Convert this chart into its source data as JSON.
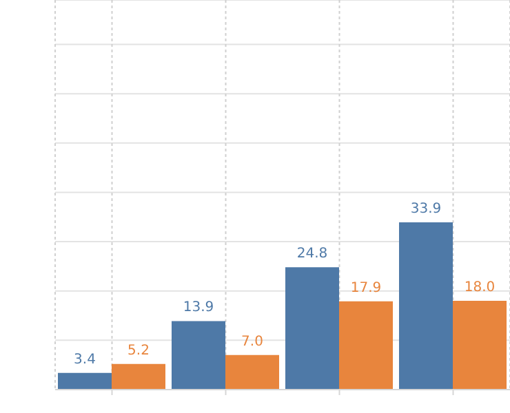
{
  "chart_data": {
    "type": "bar",
    "categories": [
      null,
      null,
      null,
      null
    ],
    "series": [
      {
        "color": "#4e79a7",
        "values": [
          3.4,
          13.9,
          24.8,
          33.9
        ],
        "value_labels": [
          "3.4",
          "13.9",
          "24.8",
          "33.9"
        ]
      },
      {
        "color": "#e8853d",
        "values": [
          5.2,
          7.0,
          17.9,
          18.0
        ],
        "value_labels": [
          "5.2",
          "7.0",
          "17.9",
          "18.0"
        ]
      }
    ],
    "ylim": [
      0,
      79
    ],
    "yticks": [
      {
        "value": 0,
        "label": null
      },
      {
        "value": 10,
        "label": null
      },
      {
        "value": 20,
        "label": null
      },
      {
        "value": 30,
        "label": null
      },
      {
        "value": 40,
        "label": null
      },
      {
        "value": 50,
        "label": null
      },
      {
        "value": 60,
        "label": null
      },
      {
        "value": 70,
        "label": null
      }
    ],
    "grid": true,
    "legend": false
  }
}
